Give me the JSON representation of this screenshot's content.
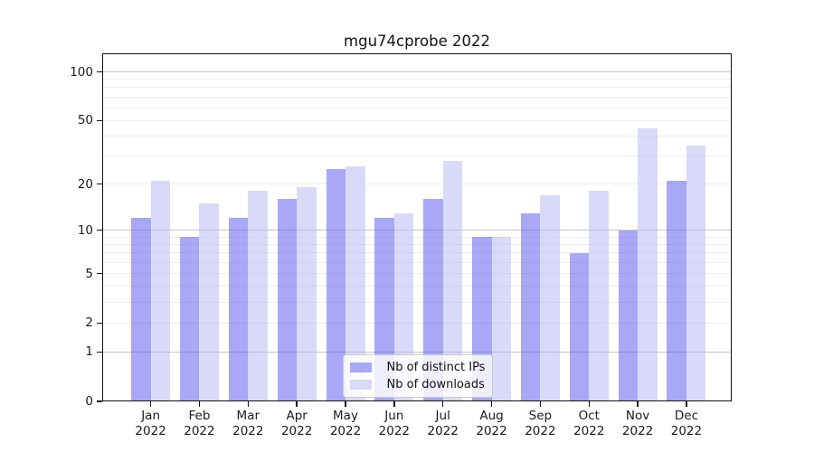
{
  "chart_data": {
    "type": "bar",
    "title": "mgu74cprobe 2022",
    "x_tick_labels": [
      [
        "Jan",
        "2022"
      ],
      [
        "Feb",
        "2022"
      ],
      [
        "Mar",
        "2022"
      ],
      [
        "Apr",
        "2022"
      ],
      [
        "May",
        "2022"
      ],
      [
        "Jun",
        "2022"
      ],
      [
        "Jul",
        "2022"
      ],
      [
        "Aug",
        "2022"
      ],
      [
        "Sep",
        "2022"
      ],
      [
        "Oct",
        "2022"
      ],
      [
        "Nov",
        "2022"
      ],
      [
        "Dec",
        "2022"
      ]
    ],
    "series": [
      {
        "name": "Nb of distinct IPs",
        "color": "#a8a8f4",
        "fill": "rgba(97,97,238,0.55)",
        "values": [
          12,
          9,
          12,
          16,
          25,
          12,
          16,
          9,
          13,
          7,
          10,
          21
        ]
      },
      {
        "name": "Nb of downloads",
        "color": "#d9d9f8",
        "fill": "rgba(186,186,243,0.55)",
        "values": [
          21,
          15,
          18,
          19,
          26,
          13,
          28,
          9,
          17,
          18,
          45,
          35
        ]
      }
    ],
    "y_axis": {
      "scale": "log1p",
      "tick_values": [
        0,
        1,
        2,
        5,
        10,
        20,
        50,
        100
      ],
      "ylim": [
        0,
        130
      ],
      "major_gridline_values": [
        1,
        10,
        100
      ],
      "minor_gridline_values": [
        2,
        3,
        4,
        5,
        6,
        7,
        8,
        9,
        20,
        30,
        40,
        50,
        60,
        70,
        80,
        90
      ]
    },
    "legend_position": "lower center",
    "grid": true,
    "colors": {
      "axis": "#111111",
      "text": "#1a1a1a",
      "major_grid": "#c4c4c4",
      "minor_grid": "#ededed",
      "background": "#ffffff"
    }
  }
}
